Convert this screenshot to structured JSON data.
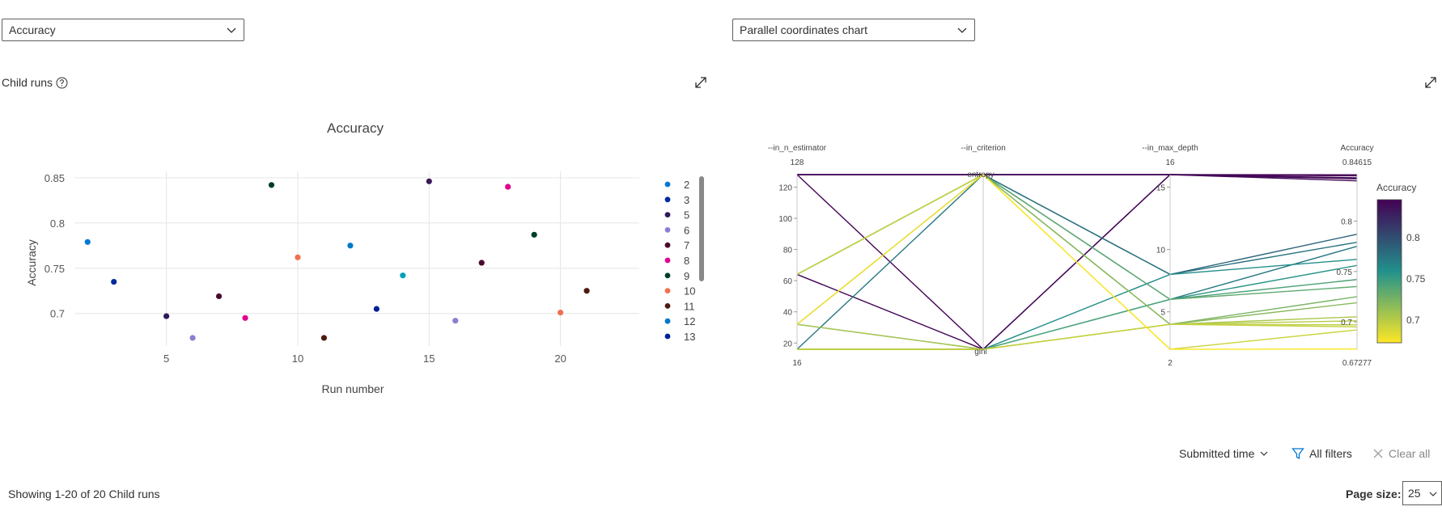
{
  "left_dropdown": {
    "value": "Accuracy"
  },
  "right_dropdown": {
    "value": "Parallel coordinates chart"
  },
  "child_runs_label": "Child runs",
  "scatter": {
    "title": "Accuracy",
    "xlabel": "Run number",
    "ylabel": "Accuracy",
    "xticks": [
      "5",
      "10",
      "15",
      "20"
    ],
    "yticks": [
      "0.85",
      "0.8",
      "0.75",
      "0.7"
    ]
  },
  "legend": {
    "items": [
      {
        "label": "2",
        "color": "#0078d4"
      },
      {
        "label": "3",
        "color": "#002b9a"
      },
      {
        "label": "5",
        "color": "#2d1b59"
      },
      {
        "label": "6",
        "color": "#8f7dd0"
      },
      {
        "label": "7",
        "color": "#4b0a2f"
      },
      {
        "label": "8",
        "color": "#e3008c"
      },
      {
        "label": "9",
        "color": "#013d2b"
      },
      {
        "label": "10",
        "color": "#f07050"
      },
      {
        "label": "11",
        "color": "#4d1a10"
      },
      {
        "label": "12",
        "color": "#0078c8"
      },
      {
        "label": "13",
        "color": "#001f9a"
      }
    ]
  },
  "chart_data": [
    {
      "type": "scatter",
      "title": "Accuracy",
      "xlabel": "Run number",
      "ylabel": "Accuracy",
      "series": [
        {
          "name": "2",
          "color": "#0078d4",
          "x": [
            2
          ],
          "y": [
            0.779
          ]
        },
        {
          "name": "3",
          "color": "#002b9a",
          "x": [
            3
          ],
          "y": [
            0.735
          ]
        },
        {
          "name": "5",
          "color": "#2d1b59",
          "x": [
            5
          ],
          "y": [
            0.697
          ]
        },
        {
          "name": "6",
          "color": "#8f7dd0",
          "x": [
            6
          ],
          "y": [
            0.673
          ]
        },
        {
          "name": "7",
          "color": "#4b0a2f",
          "x": [
            7
          ],
          "y": [
            0.719
          ]
        },
        {
          "name": "8",
          "color": "#e3008c",
          "x": [
            8
          ],
          "y": [
            0.695
          ]
        },
        {
          "name": "9",
          "color": "#013d2b",
          "x": [
            9
          ],
          "y": [
            0.842
          ]
        },
        {
          "name": "10",
          "color": "#f07050",
          "x": [
            10
          ],
          "y": [
            0.762
          ]
        },
        {
          "name": "11",
          "color": "#4d1a10",
          "x": [
            11
          ],
          "y": [
            0.673
          ]
        },
        {
          "name": "12",
          "color": "#0078c8",
          "x": [
            12
          ],
          "y": [
            0.775
          ]
        },
        {
          "name": "13",
          "color": "#001f9a",
          "x": [
            13
          ],
          "y": [
            0.705
          ]
        },
        {
          "name": "",
          "color": "#00a0b8",
          "x": [
            14
          ],
          "y": [
            0.742
          ]
        },
        {
          "name": "",
          "color": "#3b1a5a",
          "x": [
            15
          ],
          "y": [
            0.846
          ]
        },
        {
          "name": "",
          "color": "#8f7dd0",
          "x": [
            16
          ],
          "y": [
            0.692
          ]
        },
        {
          "name": "",
          "color": "#4b0a2f",
          "x": [
            17
          ],
          "y": [
            0.756
          ]
        },
        {
          "name": "",
          "color": "#e3008c",
          "x": [
            18
          ],
          "y": [
            0.84
          ]
        },
        {
          "name": "",
          "color": "#013d2b",
          "x": [
            19
          ],
          "y": [
            0.787
          ]
        },
        {
          "name": "",
          "color": "#f07050",
          "x": [
            20
          ],
          "y": [
            0.701
          ]
        },
        {
          "name": "",
          "color": "#4d1a10",
          "x": [
            21
          ],
          "y": [
            0.725
          ]
        }
      ],
      "xlim": [
        1.5,
        23
      ],
      "ylim": [
        0.664,
        0.857
      ],
      "grid": true,
      "legend": "right"
    },
    {
      "type": "parallel-coordinates",
      "axes": [
        {
          "label": "--in_n_estimator",
          "top": "128",
          "bottom": "16",
          "ticks": [
            "120",
            "100",
            "80",
            "60",
            "40",
            "20"
          ],
          "tick_values": [
            120,
            100,
            80,
            60,
            40,
            20
          ],
          "range": [
            16,
            128
          ]
        },
        {
          "label": "--in_criterion",
          "categories": [
            "entropy",
            "gini"
          ]
        },
        {
          "label": "--in_max_depth",
          "top": "16",
          "bottom": "2",
          "ticks": [
            "15",
            "10",
            "5"
          ],
          "tick_values": [
            15,
            10,
            5
          ],
          "range": [
            2,
            16
          ]
        },
        {
          "label": "Accuracy",
          "top": "0.84615",
          "bottom": "0.67277",
          "ticks": [
            "0.8",
            "0.75",
            "0.7"
          ],
          "tick_values": [
            0.8,
            0.75,
            0.7
          ],
          "range": [
            0.67277,
            0.84615
          ]
        }
      ],
      "lines": [
        {
          "n": 128,
          "c": "entropy",
          "d": 16,
          "a": 0.846
        },
        {
          "n": 128,
          "c": "entropy",
          "d": 16,
          "a": 0.842
        },
        {
          "n": 128,
          "c": "entropy",
          "d": 16,
          "a": 0.84
        },
        {
          "n": 128,
          "c": "gini",
          "d": 16,
          "a": 0.845
        },
        {
          "n": 64,
          "c": "gini",
          "d": 16,
          "a": 0.843
        },
        {
          "n": 64,
          "c": "entropy",
          "d": 8,
          "a": 0.787
        },
        {
          "n": 32,
          "c": "entropy",
          "d": 8,
          "a": 0.779
        },
        {
          "n": 16,
          "c": "entropy",
          "d": 6,
          "a": 0.775
        },
        {
          "n": 16,
          "c": "gini",
          "d": 8,
          "a": 0.762
        },
        {
          "n": 16,
          "c": "gini",
          "d": 6,
          "a": 0.756
        },
        {
          "n": 32,
          "c": "gini",
          "d": 6,
          "a": 0.742
        },
        {
          "n": 64,
          "c": "entropy",
          "d": 6,
          "a": 0.735
        },
        {
          "n": 64,
          "c": "entropy",
          "d": 4,
          "a": 0.725
        },
        {
          "n": 64,
          "c": "entropy",
          "d": 4,
          "a": 0.719
        },
        {
          "n": 32,
          "c": "gini",
          "d": 4,
          "a": 0.705
        },
        {
          "n": 16,
          "c": "gini",
          "d": 4,
          "a": 0.701
        },
        {
          "n": 16,
          "c": "gini",
          "d": 4,
          "a": 0.697
        },
        {
          "n": 16,
          "c": "gini",
          "d": 4,
          "a": 0.695
        },
        {
          "n": 64,
          "c": "entropy",
          "d": 2,
          "a": 0.692
        },
        {
          "n": 32,
          "c": "entropy",
          "d": 2,
          "a": 0.673
        }
      ],
      "colorbar": {
        "title": "Accuracy",
        "ticks": [
          "0.8",
          "0.75",
          "0.7"
        ],
        "tick_values": [
          0.8,
          0.75,
          0.7
        ],
        "range": [
          0.67277,
          0.84615
        ],
        "colorscale": [
          "#fde725",
          "#21918c",
          "#440154"
        ]
      }
    }
  ],
  "toolbar": {
    "submitted_time": "Submitted time",
    "all_filters": "All filters",
    "clear_all": "Clear all"
  },
  "showing_text": "Showing 1-20 of 20 Child runs",
  "page_size": {
    "label": "Page size:",
    "value": "25"
  }
}
